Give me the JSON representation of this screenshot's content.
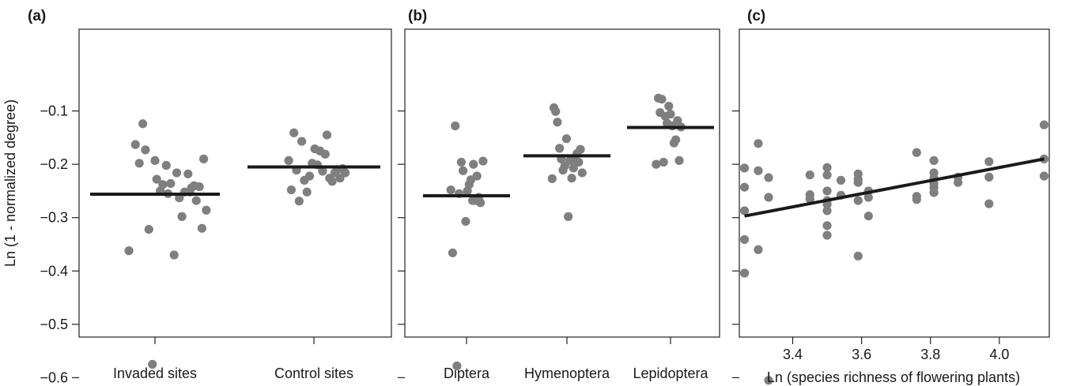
{
  "chart_data": [
    {
      "panel": "(a)",
      "type": "scatter",
      "xlabel": "",
      "ylabel": "Ln (1 - normalized degree)",
      "ylim": [
        -0.62,
        0.05
      ],
      "yticks": [
        -0.6,
        -0.5,
        -0.4,
        -0.3,
        -0.2,
        -0.1
      ],
      "ytick_labels": [
        "−0.6",
        "−0.5",
        "−0.4",
        "−0.3",
        "−0.2",
        "−0.1"
      ],
      "categories": [
        "Invaded sites",
        "Control sites"
      ],
      "means": [
        -0.256,
        -0.205
      ],
      "groups": [
        {
          "category": "Invaded sites",
          "points": [
            [
              -0.6,
              -0.362
            ],
            [
              -0.45,
              -0.163
            ],
            [
              -0.36,
              -0.198
            ],
            [
              -0.28,
              -0.124
            ],
            [
              -0.22,
              -0.173
            ],
            [
              -0.14,
              -0.322
            ],
            [
              -0.06,
              -0.575
            ],
            [
              0.0,
              -0.193
            ],
            [
              0.04,
              -0.228
            ],
            [
              0.12,
              -0.25
            ],
            [
              0.18,
              -0.238
            ],
            [
              0.26,
              -0.202
            ],
            [
              0.3,
              -0.255
            ],
            [
              0.36,
              -0.236
            ],
            [
              0.44,
              -0.37
            ],
            [
              0.5,
              -0.216
            ],
            [
              0.56,
              -0.263
            ],
            [
              0.62,
              -0.298
            ],
            [
              0.68,
              -0.252
            ],
            [
              0.76,
              -0.218
            ],
            [
              0.8,
              -0.252
            ],
            [
              0.84,
              -0.244
            ],
            [
              0.9,
              -0.24
            ],
            [
              0.95,
              -0.268
            ],
            [
              1.02,
              -0.242
            ],
            [
              1.08,
              -0.32
            ],
            [
              1.12,
              -0.19
            ],
            [
              1.18,
              -0.286
            ]
          ]
        },
        {
          "category": "Control sites",
          "points": [
            [
              -0.58,
              -0.193
            ],
            [
              -0.52,
              -0.248
            ],
            [
              -0.46,
              -0.141
            ],
            [
              -0.4,
              -0.211
            ],
            [
              -0.34,
              -0.269
            ],
            [
              -0.28,
              -0.157
            ],
            [
              -0.22,
              -0.23
            ],
            [
              -0.16,
              -0.252
            ],
            [
              -0.1,
              -0.222
            ],
            [
              -0.04,
              -0.198
            ],
            [
              0.02,
              -0.171
            ],
            [
              0.08,
              -0.201
            ],
            [
              0.14,
              -0.175
            ],
            [
              0.2,
              -0.213
            ],
            [
              0.26,
              -0.181
            ],
            [
              0.3,
              -0.145
            ],
            [
              0.36,
              -0.226
            ],
            [
              0.42,
              -0.232
            ],
            [
              0.48,
              -0.216
            ],
            [
              0.54,
              -0.21
            ],
            [
              0.6,
              -0.226
            ],
            [
              0.66,
              -0.208
            ],
            [
              0.72,
              -0.216
            ]
          ]
        }
      ]
    },
    {
      "panel": "(b)",
      "type": "scatter",
      "xlabel": "",
      "ylabel": "",
      "ylim": [
        -0.62,
        0.05
      ],
      "yticks": [
        -0.6,
        -0.5,
        -0.4,
        -0.3,
        -0.2,
        -0.1
      ],
      "categories": [
        "Diptera",
        "Hymenoptera",
        "Lepidoptera"
      ],
      "means": [
        -0.259,
        -0.184,
        -0.131
      ],
      "groups": [
        {
          "category": "Diptera",
          "points": [
            [
              -0.36,
              -0.248
            ],
            [
              -0.32,
              -0.366
            ],
            [
              -0.26,
              -0.128
            ],
            [
              -0.22,
              -0.578
            ],
            [
              -0.17,
              -0.255
            ],
            [
              -0.12,
              -0.196
            ],
            [
              -0.08,
              -0.212
            ],
            [
              -0.02,
              -0.307
            ],
            [
              0.02,
              -0.25
            ],
            [
              0.06,
              -0.238
            ],
            [
              0.1,
              -0.229
            ],
            [
              0.14,
              -0.268
            ],
            [
              0.16,
              -0.2
            ],
            [
              0.2,
              -0.268
            ],
            [
              0.24,
              -0.222
            ],
            [
              0.28,
              -0.262
            ],
            [
              0.32,
              -0.272
            ],
            [
              0.38,
              -0.194
            ]
          ]
        },
        {
          "category": "Hymenoptera",
          "points": [
            [
              -0.34,
              -0.227
            ],
            [
              -0.3,
              -0.094
            ],
            [
              -0.26,
              -0.101
            ],
            [
              -0.22,
              -0.121
            ],
            [
              -0.17,
              -0.17
            ],
            [
              -0.13,
              -0.19
            ],
            [
              -0.09,
              -0.211
            ],
            [
              -0.05,
              -0.203
            ],
            [
              -0.01,
              -0.152
            ],
            [
              0.03,
              -0.298
            ],
            [
              0.07,
              -0.193
            ],
            [
              0.11,
              -0.226
            ],
            [
              0.15,
              -0.207
            ],
            [
              0.19,
              -0.191
            ],
            [
              0.23,
              -0.18
            ],
            [
              0.27,
              -0.196
            ],
            [
              0.31,
              -0.172
            ],
            [
              0.35,
              -0.216
            ]
          ]
        },
        {
          "category": "Lepidoptera",
          "points": [
            [
              -0.33,
              -0.2
            ],
            [
              -0.28,
              -0.076
            ],
            [
              -0.24,
              -0.103
            ],
            [
              -0.2,
              -0.078
            ],
            [
              -0.16,
              -0.196
            ],
            [
              -0.12,
              -0.11
            ],
            [
              -0.08,
              -0.123
            ],
            [
              -0.04,
              -0.091
            ],
            [
              0.0,
              -0.106
            ],
            [
              0.04,
              -0.128
            ],
            [
              0.08,
              -0.16
            ],
            [
              0.12,
              -0.154
            ],
            [
              0.16,
              -0.118
            ],
            [
              0.2,
              -0.193
            ],
            [
              0.24,
              -0.13
            ]
          ]
        }
      ]
    },
    {
      "panel": "(c)",
      "type": "scatter",
      "xlabel": "Ln (species richness of flowering plants)",
      "ylabel": "",
      "xlim": [
        3.245,
        4.145
      ],
      "ylim": [
        -0.62,
        0.05
      ],
      "xticks": [
        3.4,
        3.6,
        3.8,
        4.0
      ],
      "xtick_labels": [
        "3.4",
        "3.6",
        "3.8",
        "4.0"
      ],
      "yticks": [
        -0.6,
        -0.5,
        -0.4,
        -0.3,
        -0.2,
        -0.1
      ],
      "fit_line": {
        "x": [
          3.26,
          4.13
        ],
        "y": [
          -0.297,
          -0.19
        ]
      },
      "points": [
        [
          3.26,
          -0.207
        ],
        [
          3.26,
          -0.243
        ],
        [
          3.26,
          -0.287
        ],
        [
          3.26,
          -0.341
        ],
        [
          3.26,
          -0.404
        ],
        [
          3.3,
          -0.161
        ],
        [
          3.3,
          -0.212
        ],
        [
          3.3,
          -0.36
        ],
        [
          3.33,
          -0.225
        ],
        [
          3.33,
          -0.262
        ],
        [
          3.33,
          -0.605
        ],
        [
          3.45,
          -0.22
        ],
        [
          3.45,
          -0.257
        ],
        [
          3.45,
          -0.265
        ],
        [
          3.5,
          -0.206
        ],
        [
          3.5,
          -0.22
        ],
        [
          3.5,
          -0.25
        ],
        [
          3.5,
          -0.268
        ],
        [
          3.5,
          -0.275
        ],
        [
          3.5,
          -0.287
        ],
        [
          3.5,
          -0.315
        ],
        [
          3.5,
          -0.333
        ],
        [
          3.54,
          -0.23
        ],
        [
          3.54,
          -0.258
        ],
        [
          3.59,
          -0.218
        ],
        [
          3.59,
          -0.228
        ],
        [
          3.59,
          -0.234
        ],
        [
          3.59,
          -0.268
        ],
        [
          3.59,
          -0.372
        ],
        [
          3.62,
          -0.25
        ],
        [
          3.62,
          -0.262
        ],
        [
          3.62,
          -0.297
        ],
        [
          3.76,
          -0.178
        ],
        [
          3.76,
          -0.26
        ],
        [
          3.76,
          -0.266
        ],
        [
          3.81,
          -0.193
        ],
        [
          3.81,
          -0.216
        ],
        [
          3.81,
          -0.226
        ],
        [
          3.81,
          -0.236
        ],
        [
          3.81,
          -0.244
        ],
        [
          3.81,
          -0.253
        ],
        [
          3.88,
          -0.224
        ],
        [
          3.88,
          -0.234
        ],
        [
          3.97,
          -0.195
        ],
        [
          3.97,
          -0.224
        ],
        [
          3.97,
          -0.274
        ],
        [
          4.13,
          -0.126
        ],
        [
          4.13,
          -0.19
        ],
        [
          4.13,
          -0.222
        ]
      ]
    }
  ]
}
